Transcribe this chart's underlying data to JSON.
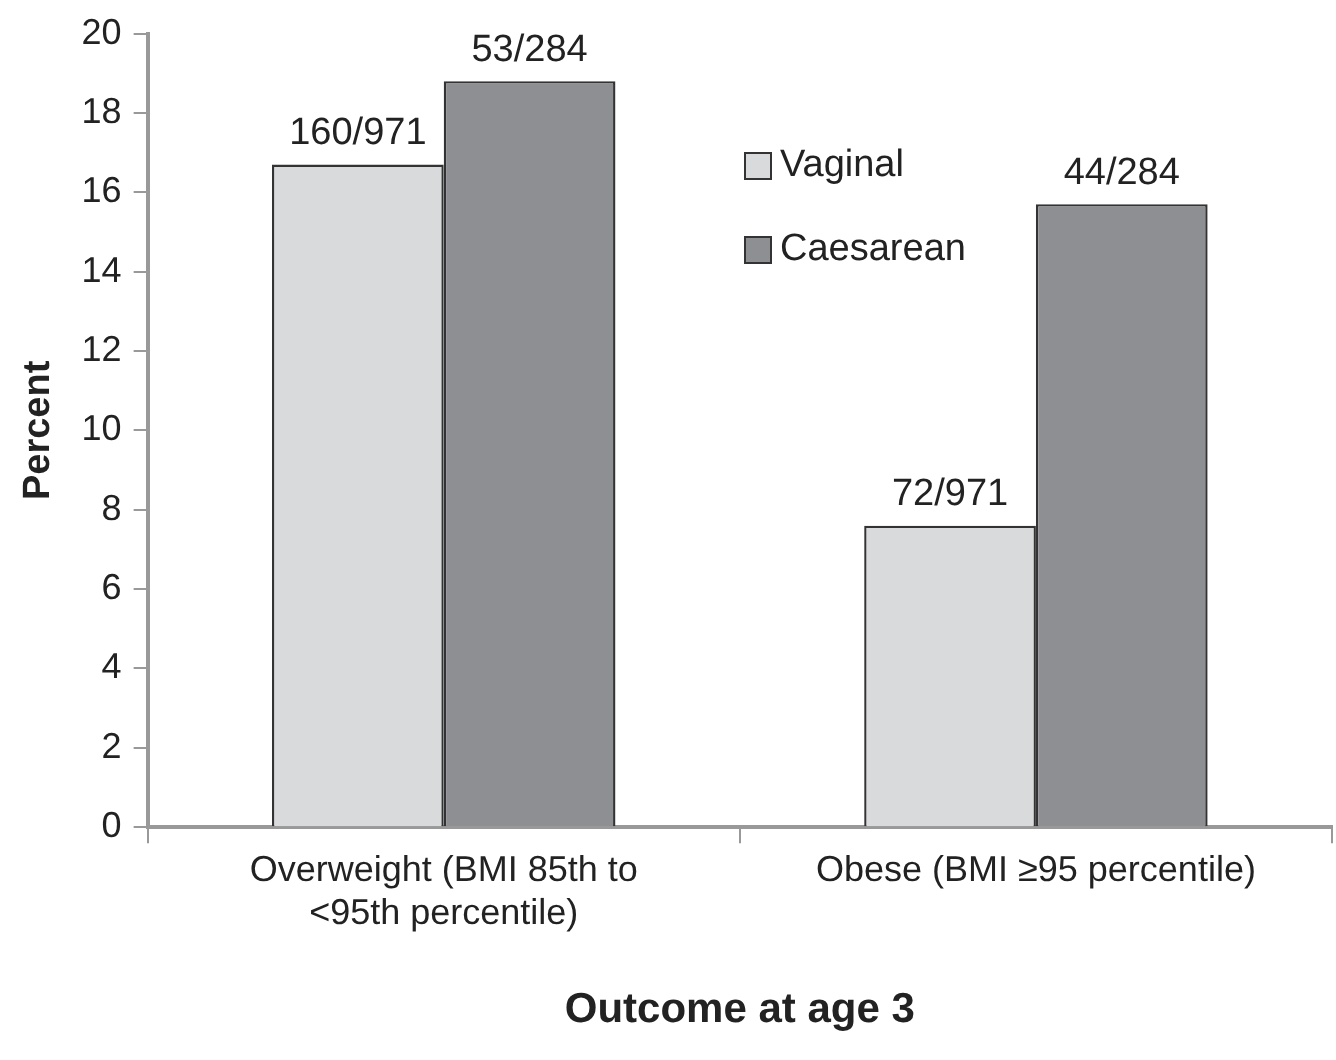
{
  "chart_data": {
    "type": "bar",
    "xlabel": "Outcome at age 3",
    "ylabel": "Percent",
    "categories": [
      "Overweight (BMI 85th to <95th percentile)",
      "Obese (BMI ≥95 percentile)"
    ],
    "series": [
      {
        "name": "Vaginal",
        "color": "#d9dadc",
        "values": [
          16.7,
          7.6
        ],
        "value_labels": [
          "160/971",
          "72/971"
        ]
      },
      {
        "name": "Caesarean",
        "color": "#8e8f93",
        "values": [
          18.8,
          15.7
        ],
        "value_labels": [
          "53/284",
          "44/284"
        ]
      }
    ],
    "ylim": [
      0,
      20
    ],
    "yticks": [
      0,
      2,
      4,
      6,
      8,
      10,
      12,
      14,
      16,
      18,
      20
    ],
    "grid": false,
    "legend": "top right"
  }
}
